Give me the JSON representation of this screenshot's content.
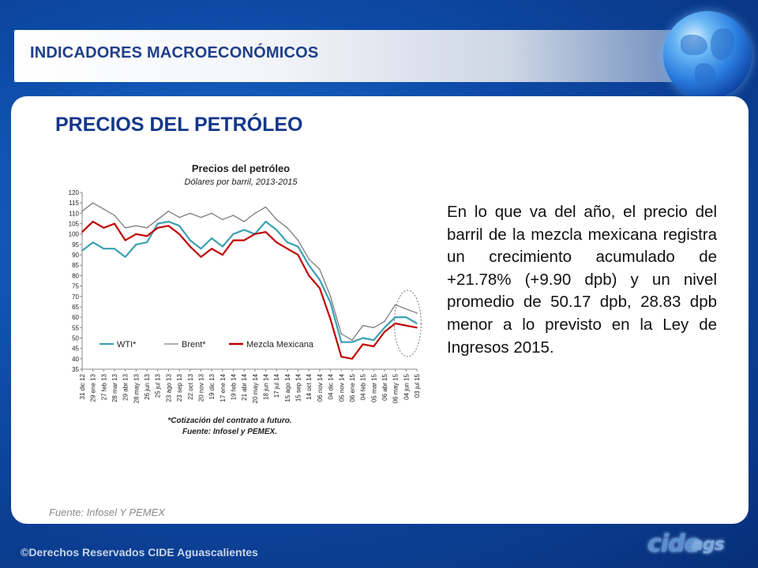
{
  "header": {
    "title": "INDICADORES MACROECONÓMICOS"
  },
  "page": {
    "title": "PRECIOS DEL PETRÓLEO"
  },
  "body_text": "En lo que va del año, el precio del barril de la mezcla mexicana registra un crecimiento acumulado de +21.78% (+9.90 dpb) y un nivel promedio de 50.17 dpb, 28.83 dpb menor a lo previsto en la Ley de Ingresos 2015.",
  "source": "Fuente: Infosel Y PEMEX",
  "footer": "©Derechos Reservados CIDE Aguascalientes",
  "logo": {
    "main": "cide",
    "sub": "ags"
  },
  "colors": {
    "wti": "#3ba0b2",
    "brent": "#7f7f7f",
    "mezcla": "#c00000",
    "title_blue": "#14378a"
  },
  "chart_data": {
    "type": "line",
    "title": "Precios del petróleo",
    "subtitle": "Dólares por barril, 2013-2015",
    "footnote": "*Cotización del contrato a futuro.",
    "source": "Fuente: Infosel y PEMEX.",
    "ylim": [
      35,
      120
    ],
    "yticks": [
      35,
      40,
      45,
      50,
      55,
      60,
      65,
      70,
      75,
      80,
      85,
      90,
      95,
      100,
      105,
      110,
      115,
      120
    ],
    "x": [
      "31 dic 12",
      "29 ene 13",
      "27 feb 13",
      "28 mar 13",
      "29 abr 13",
      "28 may 13",
      "26 jun 13",
      "25 jul 13",
      "23 ago 13",
      "23 sep 13",
      "22 oct 13",
      "20 nov 13",
      "19 dic 13",
      "17 ene 14",
      "19 feb 14",
      "21 abr 14",
      "20 may 14",
      "18 jun 14",
      "17 jul 14",
      "15 ago 14",
      "15 sep 14",
      "14 oct 14",
      "06 nov 14",
      "04 dic 14",
      "05 nov 14",
      "06 ene 15",
      "04 feb 15",
      "05 mar 15",
      "06 abr 15",
      "06 may 15",
      "04 jun 15",
      "03 jul 15"
    ],
    "legend": [
      "WTI*",
      "Brent*",
      "Mezcla Mexicana"
    ],
    "series": [
      {
        "name": "WTI*",
        "values": [
          92,
          96,
          93,
          93,
          89,
          95,
          96,
          105,
          106,
          104,
          97,
          93,
          98,
          94,
          100,
          102,
          100,
          106,
          102,
          96,
          94,
          85,
          78,
          67,
          48,
          48,
          50,
          49,
          55,
          60,
          60,
          57
        ]
      },
      {
        "name": "Brent*",
        "values": [
          111,
          115,
          112,
          109,
          103,
          104,
          103,
          107,
          111,
          108,
          110,
          108,
          110,
          107,
          109,
          106,
          110,
          113,
          107,
          103,
          97,
          88,
          83,
          70,
          52,
          49,
          56,
          55,
          58,
          66,
          64,
          62
        ]
      },
      {
        "name": "Mezcla Mexicana",
        "values": [
          101,
          106,
          103,
          105,
          97,
          100,
          99,
          103,
          104,
          100,
          94,
          89,
          93,
          90,
          97,
          97,
          100,
          101,
          96,
          93,
          90,
          80,
          74,
          59,
          41,
          40,
          47,
          46,
          53,
          57,
          56,
          55
        ]
      }
    ],
    "annotation": "dashed ellipse around most recent values"
  }
}
